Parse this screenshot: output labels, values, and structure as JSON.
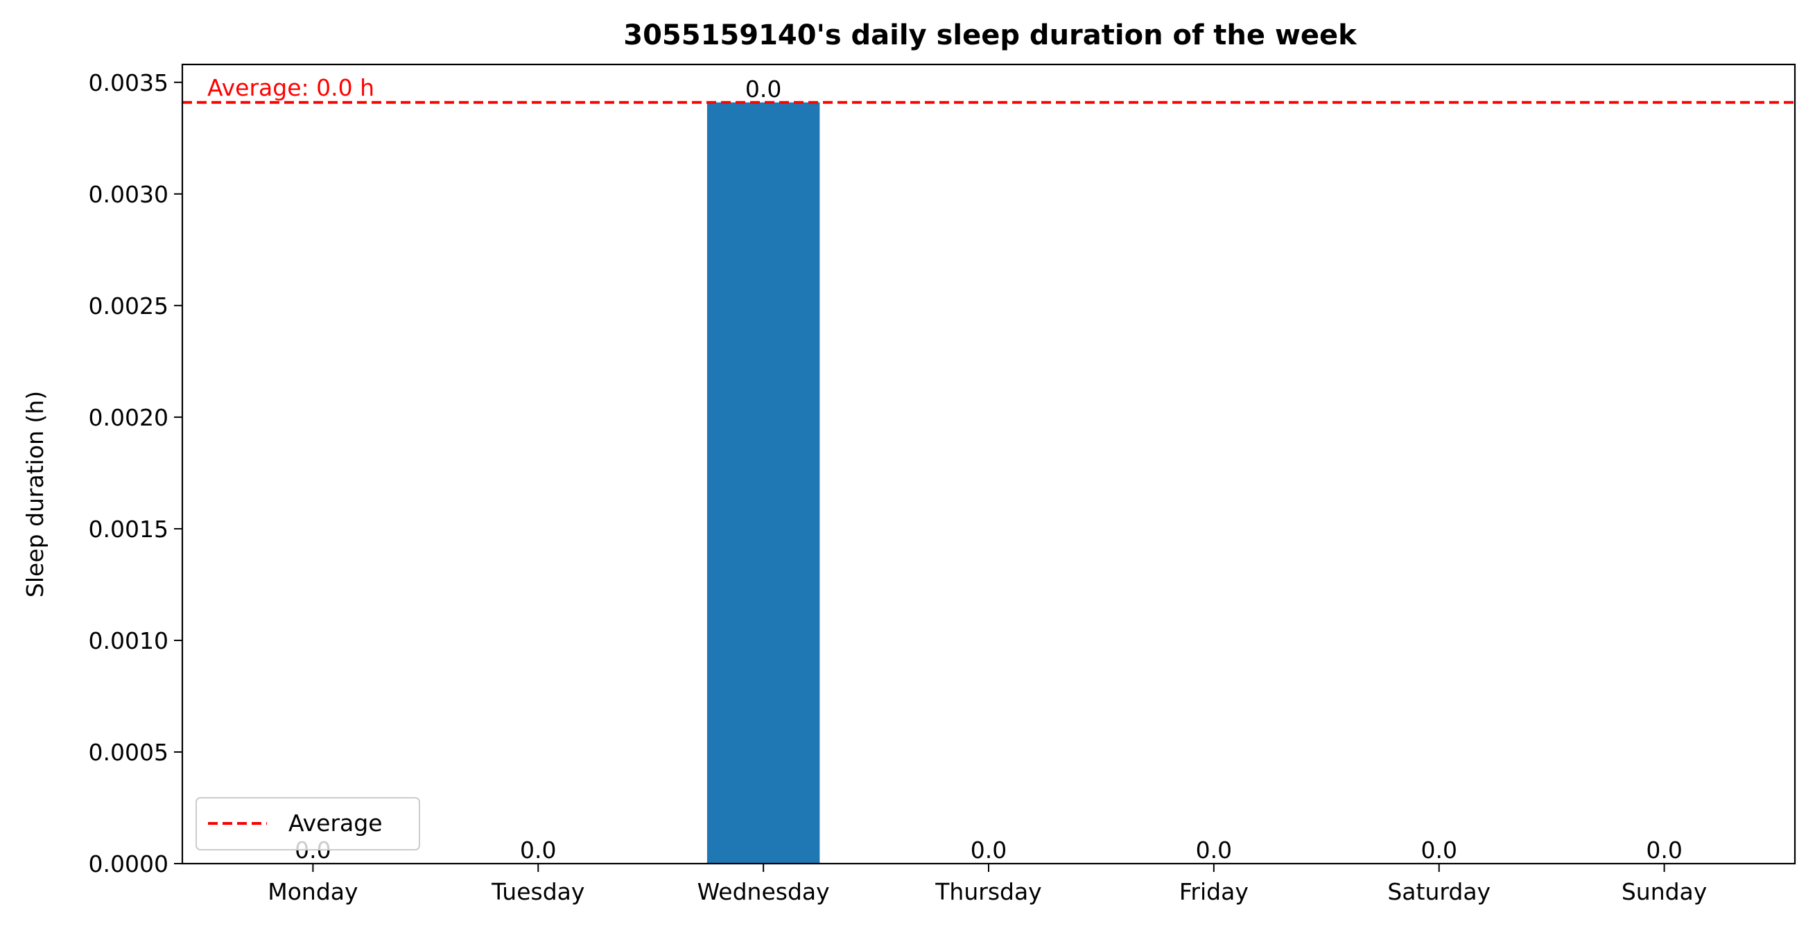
{
  "chart_data": {
    "type": "bar",
    "title": "3055159140's daily sleep duration of the week",
    "xlabel": "",
    "ylabel": "Sleep duration (h)",
    "categories": [
      "Monday",
      "Tuesday",
      "Wednesday",
      "Thursday",
      "Friday",
      "Saturday",
      "Sunday"
    ],
    "values": [
      0,
      0,
      0.00341,
      0,
      0,
      0,
      0
    ],
    "value_labels": [
      "0.0",
      "0.0",
      "0.0",
      "0.0",
      "0.0",
      "0.0",
      "0.0"
    ],
    "ylim": [
      0,
      0.00358
    ],
    "yticks": [
      0,
      0.0005,
      0.001,
      0.0015,
      0.002,
      0.0025,
      0.003,
      0.0035
    ],
    "ytick_labels": [
      "0.0000",
      "0.0005",
      "0.0010",
      "0.0015",
      "0.0020",
      "0.0025",
      "0.0030",
      "0.0035"
    ],
    "bar_color": "#1f77b4",
    "average": {
      "value": 0.00341,
      "label": "Average: 0.0 h",
      "legend_label": "Average",
      "color": "#ff0000",
      "style": "dashed"
    },
    "legend": {
      "position": "lower-left"
    },
    "grid": false
  }
}
